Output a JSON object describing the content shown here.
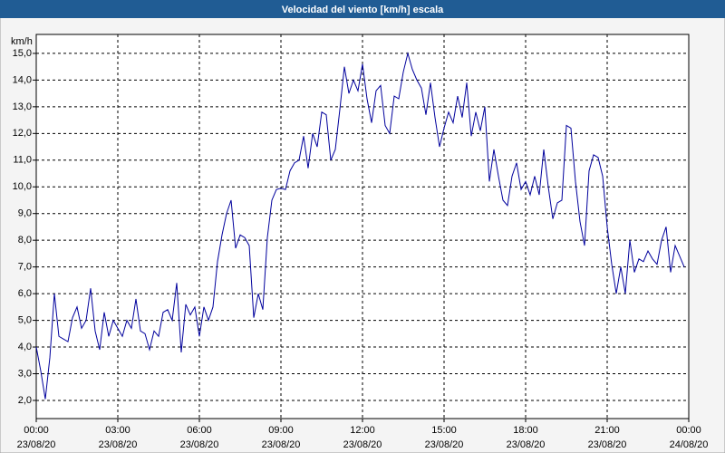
{
  "chart_data": {
    "type": "line",
    "title": "Velocidad del viento [km/h] escala",
    "y_label": "km/h",
    "x": [
      0,
      10,
      20,
      30,
      40,
      50,
      60,
      70,
      80,
      90,
      100,
      110,
      120,
      130,
      140,
      150,
      160,
      170,
      180,
      190,
      200,
      210,
      220,
      230,
      240,
      250,
      260,
      270,
      280,
      290,
      300,
      310,
      320,
      330,
      340,
      350,
      360,
      370,
      380,
      390,
      400,
      410,
      420,
      430,
      440,
      450,
      460,
      470,
      480,
      490,
      500,
      510,
      520,
      530,
      540,
      550,
      560,
      570,
      580,
      590,
      600,
      610,
      620,
      630,
      640,
      650,
      660,
      670,
      680,
      690,
      700,
      710,
      720,
      730,
      740,
      750,
      760,
      770,
      780,
      790,
      800,
      810,
      820,
      830,
      840,
      850,
      860,
      870,
      880,
      890,
      900,
      910,
      920,
      930,
      940,
      950,
      960,
      970,
      980,
      990,
      1000,
      1010,
      1020,
      1030,
      1040,
      1050,
      1060,
      1070,
      1080,
      1090,
      1100,
      1110,
      1120,
      1130,
      1140,
      1150,
      1160,
      1170,
      1180,
      1190,
      1200,
      1210,
      1220,
      1230,
      1240,
      1250,
      1260,
      1270,
      1280,
      1290,
      1300,
      1310,
      1320,
      1330,
      1340,
      1350,
      1360,
      1370,
      1380,
      1390,
      1400,
      1410,
      1420,
      1430
    ],
    "series": [
      {
        "name": "Velocidad del viento",
        "color": "#00009c",
        "values": [
          4.0,
          3.1,
          2.05,
          3.6,
          6.0,
          4.4,
          4.3,
          4.2,
          5.1,
          5.5,
          4.7,
          5.0,
          6.2,
          4.6,
          3.9,
          5.3,
          4.4,
          5.0,
          4.7,
          4.4,
          5.0,
          4.7,
          5.8,
          4.6,
          4.5,
          3.9,
          4.6,
          4.4,
          5.3,
          5.4,
          5.0,
          6.4,
          3.8,
          5.6,
          5.2,
          5.5,
          4.4,
          5.5,
          5.0,
          5.5,
          7.2,
          8.2,
          9.0,
          9.5,
          7.7,
          8.2,
          8.1,
          7.8,
          5.1,
          6.0,
          5.4,
          8.1,
          9.5,
          9.9,
          9.95,
          9.9,
          10.6,
          10.9,
          11.0,
          11.9,
          10.7,
          12.0,
          11.5,
          12.8,
          12.7,
          11.0,
          11.4,
          12.9,
          14.5,
          13.5,
          14.0,
          13.6,
          14.6,
          13.3,
          12.4,
          13.6,
          13.8,
          12.3,
          12.0,
          13.4,
          13.3,
          14.3,
          15.0,
          14.4,
          14.0,
          13.7,
          12.7,
          13.9,
          12.6,
          11.5,
          12.2,
          12.8,
          12.4,
          13.4,
          12.6,
          13.9,
          11.9,
          12.8,
          12.1,
          13.0,
          10.2,
          11.4,
          10.4,
          9.5,
          9.3,
          10.4,
          10.9,
          9.9,
          10.2,
          9.7,
          10.4,
          9.7,
          11.4,
          10.0,
          8.8,
          9.4,
          9.5,
          12.3,
          12.2,
          10.2,
          8.7,
          7.8,
          10.6,
          11.2,
          11.1,
          10.4,
          8.5,
          7.1,
          6.0,
          7.0,
          6.0,
          8.0,
          6.8,
          7.3,
          7.2,
          7.6,
          7.3,
          7.1,
          8.0,
          8.5,
          6.8,
          7.8,
          7.4,
          7.0
        ]
      }
    ],
    "xlim": [
      0,
      1440
    ],
    "xticks": [
      {
        "value": 0,
        "label": "00:00"
      },
      {
        "value": 180,
        "label": "03:00"
      },
      {
        "value": 360,
        "label": "06:00"
      },
      {
        "value": 540,
        "label": "09:00"
      },
      {
        "value": 720,
        "label": "12:00"
      },
      {
        "value": 900,
        "label": "15:00"
      },
      {
        "value": 1080,
        "label": "18:00"
      },
      {
        "value": 1260,
        "label": "21:00"
      },
      {
        "value": 1440,
        "label": "00:00"
      }
    ],
    "xtick_dates": [
      "23/08/20",
      "23/08/20",
      "23/08/20",
      "23/08/20",
      "23/08/20",
      "23/08/20",
      "23/08/20",
      "23/08/20",
      "24/08/20"
    ],
    "ylim": [
      1.32,
      15.71
    ],
    "yticks": [
      {
        "value": 2,
        "label": "2,0"
      },
      {
        "value": 3,
        "label": "3,0"
      },
      {
        "value": 4,
        "label": "4,0"
      },
      {
        "value": 5,
        "label": "5,0"
      },
      {
        "value": 6,
        "label": "6,0"
      },
      {
        "value": 7,
        "label": "7,0"
      },
      {
        "value": 8,
        "label": "8,0"
      },
      {
        "value": 9,
        "label": "9,0"
      },
      {
        "value": 10,
        "label": "10,0"
      },
      {
        "value": 11,
        "label": "11,0"
      },
      {
        "value": 12,
        "label": "12,0"
      },
      {
        "value": 13,
        "label": "13,0"
      },
      {
        "value": 14,
        "label": "14,0"
      },
      {
        "value": 15,
        "label": "15,0"
      }
    ],
    "grid": true
  }
}
